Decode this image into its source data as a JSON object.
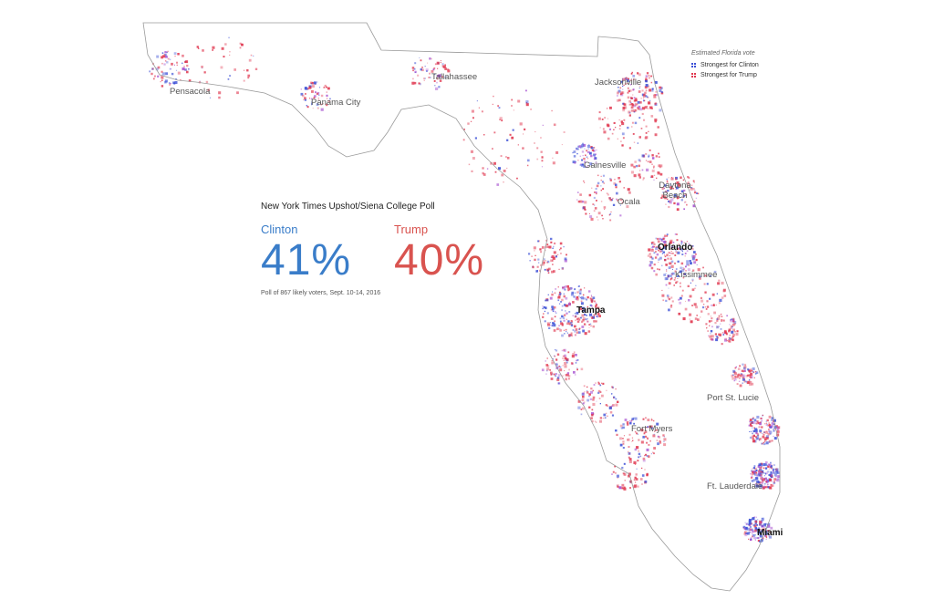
{
  "legend": {
    "title": "Estimated Florida vote",
    "items": [
      {
        "label": "Strongest for Clinton",
        "color": "#3b4fd6",
        "icon": "blue-dots-icon"
      },
      {
        "label": "Strongest for Trump",
        "color": "#e0364e",
        "icon": "red-dots-icon"
      }
    ]
  },
  "poll": {
    "title": "New York Times Upshot/Siena College Poll",
    "candidates": [
      {
        "name": "Clinton",
        "percent": "41%",
        "color": "#3a7dc9"
      },
      {
        "name": "Trump",
        "percent": "40%",
        "color": "#d9534f"
      }
    ],
    "note": "Poll of 867 likely voters, Sept. 10-14, 2016"
  },
  "cities": {
    "pensacola": "Pensacola",
    "panama_city": "Panama City",
    "tallahassee": "Tallahassee",
    "jacksonville": "Jacksonville",
    "gainesville": "Gainesville",
    "daytona_beach": "Daytona Beach",
    "ocala": "Ocala",
    "orlando": "Orlando",
    "kissimmee": "Kissimmee",
    "tampa": "Tampa",
    "port_st_lucie": "Port St. Lucie",
    "fort_myers": "Fort Myers",
    "ft_lauderdale": "Ft. Lauderdale",
    "miami": "Miami"
  },
  "colors": {
    "outline": "#9a9a9a",
    "clinton": "#3b4fd6",
    "trump": "#e0364e",
    "mixed": "#a64fd0"
  }
}
